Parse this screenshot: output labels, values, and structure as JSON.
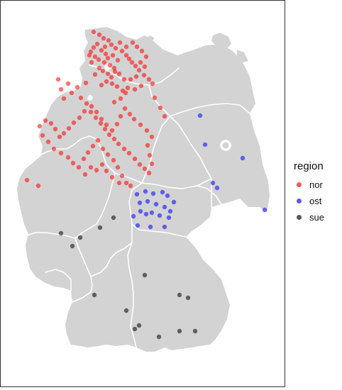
{
  "legend": {
    "title": "region",
    "items": [
      {
        "label": "nor",
        "color": "#ff0000"
      },
      {
        "label": "ost",
        "color": "#0000ff"
      },
      {
        "label": "sue",
        "color": "#000000"
      }
    ]
  },
  "colors": {
    "land": "#d3d3d3",
    "border": "#ffffff",
    "frame": "#333333"
  },
  "chart_data": {
    "type": "scatter",
    "title": "",
    "xlabel": "",
    "ylabel": "",
    "grid": false,
    "legend_position": "right",
    "series": [
      {
        "name": "nor",
        "points": [
          [
            132,
            45
          ],
          [
            140,
            49
          ],
          [
            146,
            54
          ],
          [
            153,
            57
          ],
          [
            157,
            63
          ],
          [
            163,
            68
          ],
          [
            169,
            60
          ],
          [
            172,
            72
          ],
          [
            178,
            78
          ],
          [
            182,
            83
          ],
          [
            186,
            88
          ],
          [
            191,
            93
          ],
          [
            196,
            99
          ],
          [
            203,
            106
          ],
          [
            210,
            112
          ],
          [
            215,
            118
          ],
          [
            199,
            121
          ],
          [
            190,
            126
          ],
          [
            180,
            124
          ],
          [
            173,
            128
          ],
          [
            162,
            101
          ],
          [
            157,
            109
          ],
          [
            150,
            115
          ],
          [
            143,
            120
          ],
          [
            134,
            105
          ],
          [
            140,
            96
          ],
          [
            147,
            88
          ],
          [
            152,
            82
          ],
          [
            159,
            78
          ],
          [
            166,
            85
          ],
          [
            126,
            78
          ],
          [
            128,
            73
          ],
          [
            132,
            67
          ],
          [
            137,
            62
          ],
          [
            143,
            71
          ],
          [
            149,
            76
          ],
          [
            155,
            92
          ],
          [
            161,
            96
          ],
          [
            168,
            104
          ],
          [
            175,
            112
          ],
          [
            184,
            112
          ],
          [
            192,
            108
          ],
          [
            198,
            88
          ],
          [
            204,
            94
          ],
          [
            206,
            80
          ],
          [
            200,
            72
          ],
          [
            193,
            66
          ],
          [
            187,
            60
          ],
          [
            178,
            66
          ],
          [
            148,
            66
          ],
          [
            134,
            80
          ],
          [
            129,
            88
          ],
          [
            139,
            84
          ],
          [
            145,
            100
          ],
          [
            152,
            104
          ],
          [
            158,
            118
          ],
          [
            165,
            122
          ],
          [
            177,
            131
          ],
          [
            170,
            139
          ],
          [
            161,
            144
          ],
          [
            121,
            117
          ],
          [
            109,
            123
          ],
          [
            96,
            118
          ],
          [
            82,
            112
          ],
          [
            86,
            126
          ],
          [
            90,
            139
          ],
          [
            101,
            131
          ],
          [
            114,
            138
          ],
          [
            122,
            146
          ],
          [
            128,
            158
          ],
          [
            135,
            166
          ],
          [
            142,
            174
          ],
          [
            148,
            182
          ],
          [
            154,
            190
          ],
          [
            161,
            196
          ],
          [
            167,
            203
          ],
          [
            175,
            210
          ],
          [
            182,
            216
          ],
          [
            190,
            224
          ],
          [
            197,
            232
          ],
          [
            204,
            238
          ],
          [
            210,
            244
          ],
          [
            214,
            231
          ],
          [
            211,
            219
          ],
          [
            208,
            205
          ],
          [
            214,
            193
          ],
          [
            207,
            184
          ],
          [
            198,
            176
          ],
          [
            189,
            168
          ],
          [
            183,
            161
          ],
          [
            176,
            153
          ],
          [
            170,
            164
          ],
          [
            165,
            175
          ],
          [
            158,
            184
          ],
          [
            150,
            176
          ],
          [
            143,
            168
          ],
          [
            136,
            158
          ],
          [
            129,
            150
          ],
          [
            119,
            157
          ],
          [
            112,
            166
          ],
          [
            104,
            173
          ],
          [
            97,
            181
          ],
          [
            90,
            188
          ],
          [
            84,
            193
          ],
          [
            78,
            182
          ],
          [
            72,
            174
          ],
          [
            64,
            170
          ],
          [
            56,
            178
          ],
          [
            60,
            191
          ],
          [
            68,
            200
          ],
          [
            76,
            210
          ],
          [
            86,
            216
          ],
          [
            96,
            222
          ],
          [
            103,
            230
          ],
          [
            111,
            236
          ],
          [
            118,
            224
          ],
          [
            124,
            215
          ],
          [
            131,
            206
          ],
          [
            138,
            198
          ],
          [
            145,
            210
          ],
          [
            152,
            218
          ],
          [
            160,
            226
          ],
          [
            166,
            236
          ],
          [
            172,
            248
          ],
          [
            178,
            258
          ],
          [
            184,
            262
          ],
          [
            168,
            258
          ],
          [
            158,
            250
          ],
          [
            150,
            241
          ],
          [
            144,
            232
          ],
          [
            136,
            240
          ],
          [
            128,
            236
          ],
          [
            120,
            246
          ],
          [
            38,
            254
          ],
          [
            54,
            262
          ],
          [
            218,
            138
          ],
          [
            226,
            152
          ],
          [
            232,
            164
          ]
        ]
      },
      {
        "name": "ost",
        "points": [
          [
            282,
            163
          ],
          [
            289,
            204
          ],
          [
            342,
            223
          ],
          [
            300,
            258
          ],
          [
            306,
            265
          ],
          [
            373,
            296
          ],
          [
            193,
            274
          ],
          [
            205,
            270
          ],
          [
            216,
            273
          ],
          [
            229,
            271
          ],
          [
            236,
            276
          ],
          [
            245,
            285
          ],
          [
            197,
            286
          ],
          [
            208,
            284
          ],
          [
            220,
            288
          ],
          [
            232,
            292
          ],
          [
            240,
            298
          ],
          [
            198,
            298
          ],
          [
            206,
            302
          ],
          [
            214,
            300
          ],
          [
            225,
            304
          ],
          [
            188,
            305
          ],
          [
            194,
            318
          ],
          [
            212,
            320
          ],
          [
            232,
            320
          ],
          [
            238,
            307
          ]
        ]
      },
      {
        "name": "sue",
        "points": [
          [
            160,
            307
          ],
          [
            141,
            321
          ],
          [
            86,
            329
          ],
          [
            113,
            335
          ],
          [
            102,
            347
          ],
          [
            204,
            388
          ],
          [
            133,
            416
          ],
          [
            253,
            416
          ],
          [
            265,
            420
          ],
          [
            178,
            438
          ],
          [
            196,
            459
          ],
          [
            190,
            464
          ],
          [
            224,
            475
          ],
          [
            253,
            467
          ],
          [
            275,
            467
          ]
        ]
      }
    ]
  }
}
